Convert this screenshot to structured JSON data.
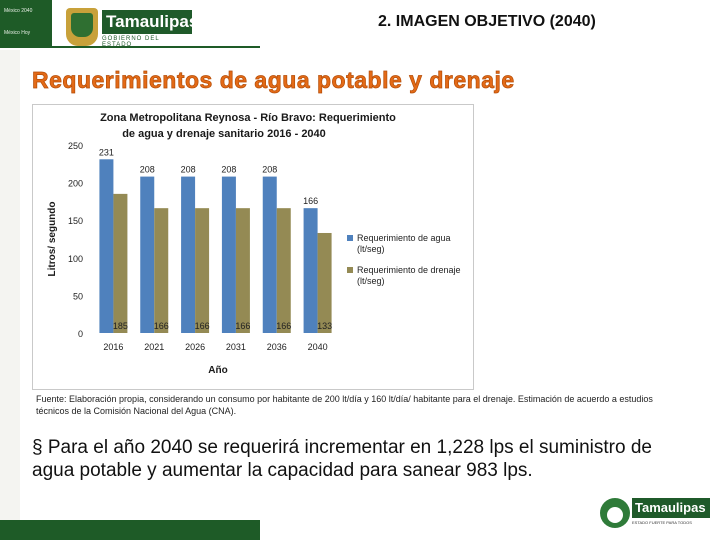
{
  "header": {
    "top_left_line1": "México 2040",
    "top_left_line2": "México Hoy",
    "logo_name": "Tamaulipas",
    "logo_subtitle": "GOBIERNO DEL ESTADO",
    "slide_title": "2. IMAGEN OBJETIVO (2040)"
  },
  "main_heading": "Requerimientos de agua potable y drenaje",
  "chart_data": {
    "type": "bar",
    "title_line1": "Zona Metropolitana Reynosa - Río Bravo: Requerimiento",
    "title_line2": "de agua y drenaje sanitario 2016 - 2040",
    "xlabel": "Año",
    "ylabel": "Litros/ segundo",
    "categories": [
      "2016",
      "2021",
      "2026",
      "2031",
      "2036",
      "2040"
    ],
    "ylim": [
      0,
      250
    ],
    "yticks": [
      "0",
      "50",
      "100",
      "150",
      "200",
      "250"
    ],
    "series": [
      {
        "name": "Requerimiento de agua (lt/seg)",
        "values": [
          231,
          208,
          208,
          208,
          208,
          166
        ],
        "color": "#4f81bd"
      },
      {
        "name": "Requerimiento de drenaje (lt/seg)",
        "values": [
          185,
          166,
          166,
          166,
          166,
          133
        ],
        "color": "#948a54"
      }
    ],
    "grid": false,
    "legend": "right"
  },
  "source_note": "Fuente: Elaboración propia, considerando un consumo por habitante de 200 lt/día y 160 lt/día/ habitante para el drenaje. Estimación de acuerdo a estudios técnicos de la Comisión Nacional del Agua (CNA).",
  "bullet": {
    "symbol": "§",
    "text": " Para el año 2040 se requerirá incrementar en 1,228 lps el suministro de agua potable y aumentar la capacidad para sanear 983 lps."
  },
  "footer": {
    "logo_name": "Tamaulipas",
    "logo_subtitle": "ESTADO FUERTE PARA TODOS"
  }
}
